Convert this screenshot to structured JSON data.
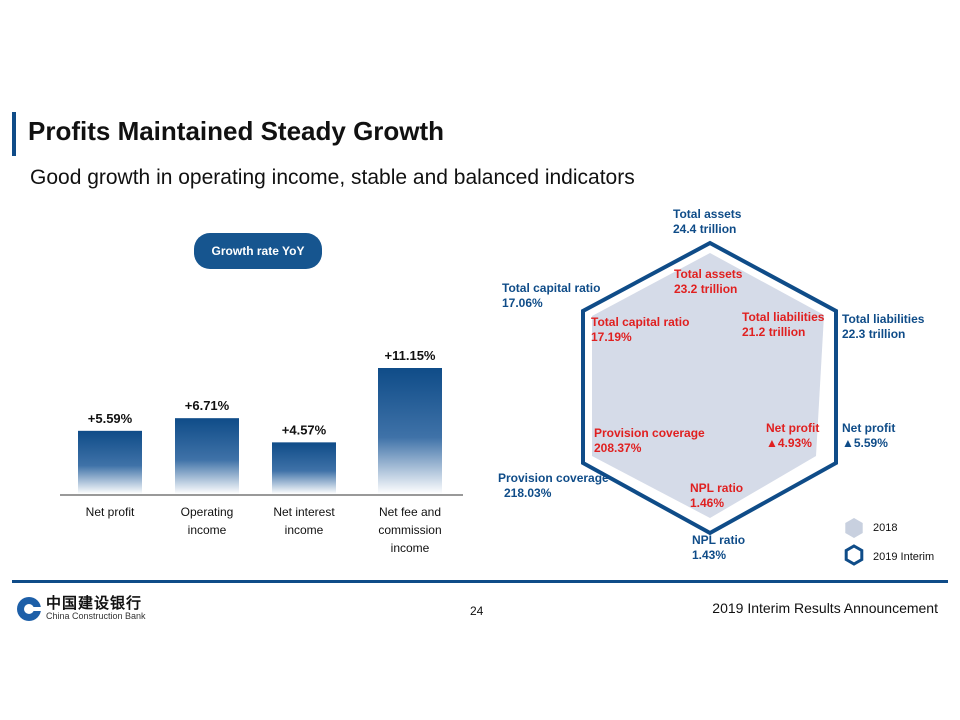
{
  "header": {
    "title": "Profits Maintained Steady Growth",
    "subtitle": "Good growth in operating income, stable and balanced indicators"
  },
  "badge": {
    "label": "Growth rate YoY"
  },
  "footer": {
    "logo_cn": "中国建设银行",
    "logo_en": "China Construction Bank",
    "page_number": "24",
    "title": "2019 Interim Results Announcement"
  },
  "colors": {
    "accent": "#0f4c88",
    "red": "#e02020",
    "hex_fill": "#d5dbe8"
  },
  "chart_data": [
    {
      "type": "bar",
      "categories": [
        [
          "Net profit"
        ],
        [
          "Operating",
          "income"
        ],
        [
          "Net interest",
          "income"
        ],
        [
          "Net fee and",
          "commission",
          "income"
        ]
      ],
      "values": [
        5.59,
        6.71,
        4.57,
        11.15
      ],
      "labels": [
        "+5.59%",
        "+6.71%",
        "+4.57%",
        "+11.15%"
      ],
      "title": "Growth rate YoY",
      "ylim": [
        0,
        11.15
      ]
    },
    {
      "type": "radar",
      "axes": [
        "Total assets",
        "Total liabilities",
        "Net profit",
        "NPL ratio",
        "Provision coverage",
        "Total capital ratio"
      ],
      "series": [
        {
          "name": "2018",
          "labels": [
            [
              "Total assets",
              "23.2 trillion"
            ],
            [
              "Total liabilities",
              "21.2 trillion"
            ],
            [
              "Net profit",
              "▲4.93%"
            ],
            [
              "NPL ratio",
              "1.46%"
            ],
            [
              "Provision coverage",
              "208.37%"
            ],
            [
              "Total capital ratio",
              "17.19%"
            ]
          ]
        },
        {
          "name": "2019 Interim",
          "labels": [
            [
              "Total assets",
              "24.4 trillion"
            ],
            [
              "Total liabilities",
              "22.3 trillion"
            ],
            [
              "Net profit",
              "▲5.59%"
            ],
            [
              "NPL ratio",
              "1.43%"
            ],
            [
              "Provision coverage",
              "218.03%"
            ],
            [
              "Total capital ratio",
              "17.06%"
            ]
          ]
        }
      ]
    }
  ]
}
